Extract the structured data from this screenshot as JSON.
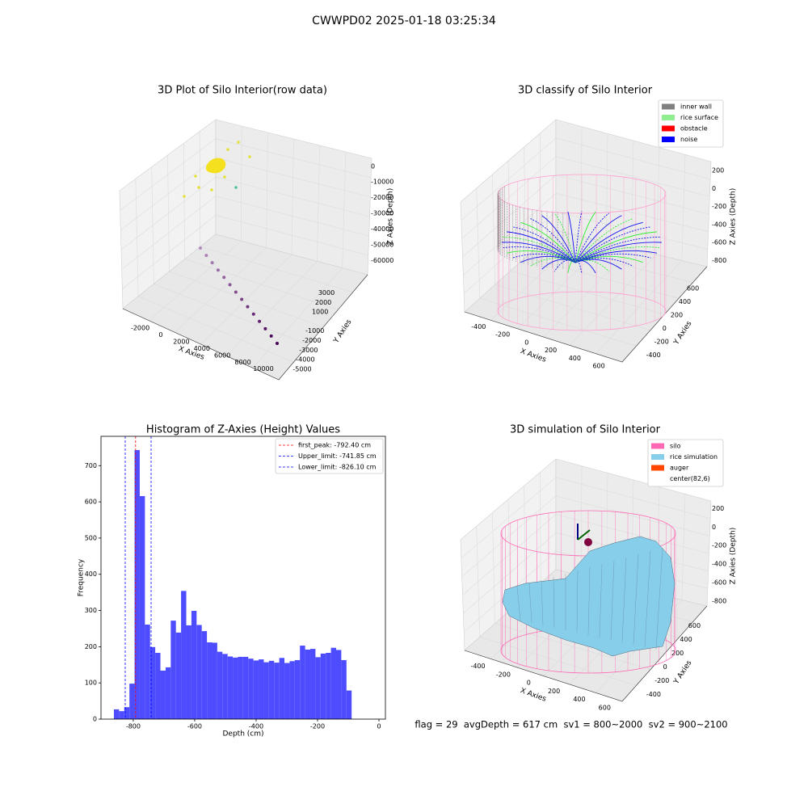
{
  "title": "CWWPD02 2025-01-18 03:25:34",
  "footer": "flag = 29  avgDepth = 617 cm  sv1 = 800~2000  sv2 = 900~2100",
  "chart_data": [
    {
      "type": "scatter3d",
      "title": "3D Plot of Silo Interior(row data)",
      "xlabel": "X Axies",
      "ylabel": "Y Axies",
      "zlabel": "Z Axies (Depth)",
      "xlim": [
        -3700,
        11500
      ],
      "xticks": [
        -2000,
        0,
        2000,
        4000,
        6000,
        8000,
        10000
      ],
      "ylim": [
        -5600,
        3800
      ],
      "yticks": [
        -5000,
        -4000,
        -3000,
        -2000,
        -1000,
        1000,
        2000,
        3000
      ],
      "zlim": [
        -66000,
        4000
      ],
      "zticks": [
        -60000,
        -50000,
        -40000,
        -30000,
        -20000,
        -10000,
        0
      ]
    },
    {
      "type": "line3d",
      "title": "3D classify of Silo Interior",
      "xlabel": "X Axies",
      "ylabel": "Y Axies",
      "zlabel": "Z Axies (Depth)",
      "xlim": [
        -550,
        700
      ],
      "xticks": [
        -400,
        -200,
        0,
        200,
        400,
        600
      ],
      "ylim": [
        -550,
        700
      ],
      "yticks": [
        -400,
        -200,
        0,
        200,
        400,
        600
      ],
      "zlim": [
        -950,
        300
      ],
      "zticks": [
        -800,
        -600,
        -400,
        -200,
        0,
        200
      ],
      "legend": [
        {
          "name": "inner wall",
          "color": "#808080"
        },
        {
          "name": "rice surface",
          "color": "#90ee90"
        },
        {
          "name": "obstacle",
          "color": "#ff0000"
        },
        {
          "name": "noise",
          "color": "#0000ff"
        }
      ]
    },
    {
      "type": "histogram",
      "title": "Histogram of Z-Axies (Height) Values",
      "xlabel": "Depth (cm)",
      "ylabel": "Frequency",
      "color": "#4d4dff",
      "bins": [
        -863.0,
        -846.2,
        -829.3,
        -812.5,
        -795.7,
        -778.9,
        -762.0,
        -745.2,
        -728.4,
        -711.6,
        -694.7,
        -677.9,
        -661.1,
        -644.3,
        -627.4,
        -610.6,
        -593.8,
        -577.0,
        -560.1,
        -543.3,
        -526.5,
        -509.7,
        -492.8,
        -476.0,
        -459.2,
        -442.4,
        -425.5,
        -408.7,
        -391.9,
        -375.0,
        -358.2,
        -341.4,
        -324.6,
        -307.7,
        -290.9,
        -274.1,
        -257.3,
        -240.4,
        -223.6,
        -206.8,
        -190.0,
        -173.1,
        -156.3,
        -139.5,
        -122.7,
        -105.8,
        -89.0
      ],
      "values": [
        27,
        22,
        33,
        98,
        743,
        616,
        261,
        199,
        183,
        134,
        143,
        272,
        239,
        354,
        259,
        299,
        260,
        243,
        212,
        211,
        186,
        180,
        173,
        170,
        172,
        172,
        167,
        162,
        165,
        157,
        161,
        156,
        169,
        155,
        160,
        163,
        203,
        192,
        194,
        171,
        181,
        183,
        197,
        191,
        163,
        79
      ],
      "xlim": [
        -905,
        21
      ],
      "xticks": [
        -800,
        -600,
        -400,
        -200,
        0
      ],
      "ylim": [
        0,
        781
      ],
      "yticks": [
        0,
        100,
        200,
        300,
        400,
        500,
        600,
        700
      ],
      "vlines": [
        {
          "name": "first_peak: -792.40 cm",
          "value": -792.4,
          "color": "#ff0000"
        },
        {
          "name": "Upper_limit: -741.85 cm",
          "value": -741.85,
          "color": "#0000ff"
        },
        {
          "name": "Lower_limit: -826.10 cm",
          "value": -826.1,
          "color": "#0000ff"
        }
      ]
    },
    {
      "type": "surface3d",
      "title": "3D simulation of Silo Interior",
      "xlabel": "X Axies",
      "ylabel": "Y Axies",
      "zlabel": "Z Axies (Depth)",
      "xlim": [
        -550,
        700
      ],
      "xticks": [
        -400,
        -200,
        0,
        200,
        400,
        600
      ],
      "ylim": [
        -550,
        700
      ],
      "yticks": [
        -400,
        -200,
        0,
        200,
        400,
        600
      ],
      "zlim": [
        -950,
        300
      ],
      "zticks": [
        -800,
        -600,
        -400,
        -200,
        0,
        200
      ],
      "legend": [
        {
          "name": "silo",
          "color": "#ff69b4"
        },
        {
          "name": "rice simulation",
          "color": "#87ceeb"
        },
        {
          "name": "auger",
          "color": "#ff4500"
        },
        {
          "name": "center(82,6)",
          "color": "#ffffff"
        }
      ]
    }
  ]
}
